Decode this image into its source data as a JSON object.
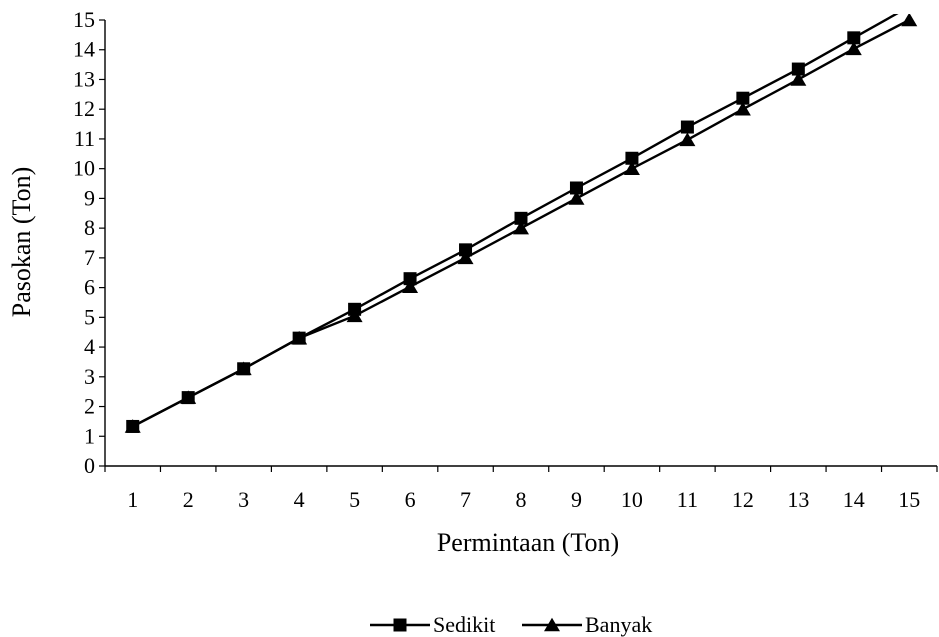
{
  "chart_data": {
    "type": "line",
    "xlabel": "Permintaan (Ton)",
    "ylabel": "Pasokan (Ton)",
    "categories": [
      1,
      2,
      3,
      4,
      5,
      6,
      7,
      8,
      9,
      10,
      11,
      12,
      13,
      14,
      15
    ],
    "ylim": [
      0,
      15
    ],
    "y_ticks": [
      0,
      1,
      2,
      3,
      4,
      5,
      6,
      7,
      8,
      9,
      10,
      11,
      12,
      13,
      14,
      15
    ],
    "grid": false,
    "legend_position": "bottom",
    "series": [
      {
        "name": "Sedikit",
        "marker": "square",
        "color": "#000000",
        "values": [
          1.33,
          2.3,
          3.27,
          4.3,
          5.27,
          6.3,
          7.27,
          8.33,
          9.35,
          10.35,
          11.4,
          12.37,
          13.35,
          14.4,
          15.45
        ]
      },
      {
        "name": "Banyak",
        "marker": "triangle",
        "color": "#000000",
        "values": [
          1.33,
          2.3,
          3.27,
          4.3,
          5.05,
          6.03,
          7.0,
          8.0,
          9.0,
          10.0,
          10.97,
          12.0,
          13.0,
          14.03,
          15.0
        ]
      }
    ]
  }
}
